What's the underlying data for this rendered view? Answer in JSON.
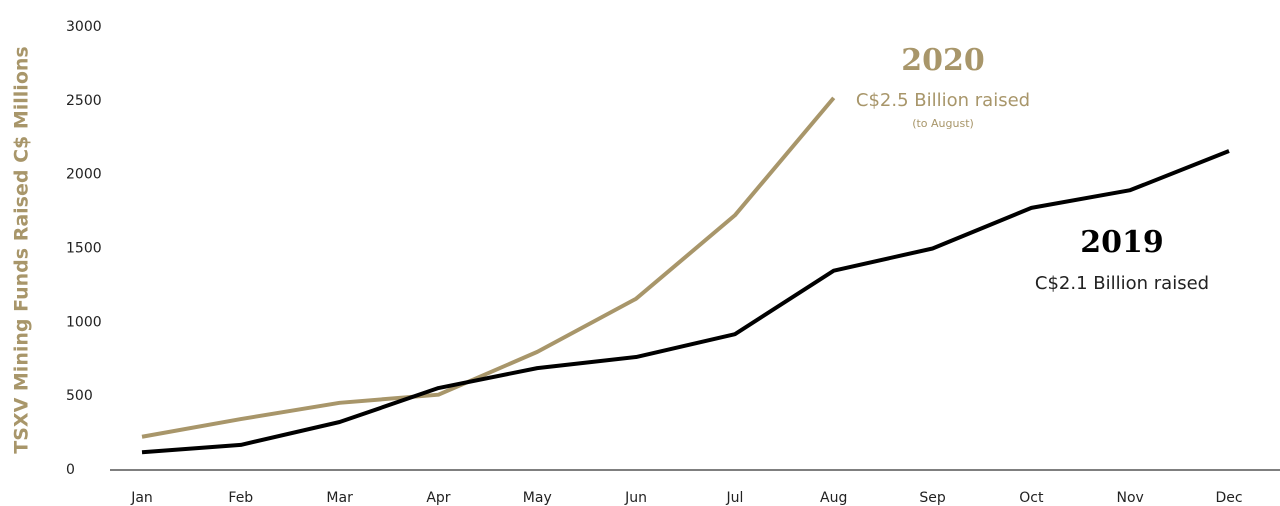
{
  "chart_data": {
    "type": "line",
    "y_label": "TSXV Mining Funds Raised C$ Millions",
    "categories": [
      "Jan",
      "Feb",
      "Mar",
      "Apr",
      "May",
      "Jun",
      "Jul",
      "Aug",
      "Sep",
      "Oct",
      "Nov",
      "Dec"
    ],
    "series": [
      {
        "name": "2020",
        "color": "#a8966a",
        "values": [
          225,
          345,
          455,
          510,
          800,
          1160,
          1725,
          2520,
          null,
          null,
          null,
          null
        ]
      },
      {
        "name": "2019",
        "color": "#000000",
        "values": [
          120,
          170,
          325,
          555,
          690,
          765,
          920,
          1350,
          1500,
          1775,
          1895,
          2160
        ]
      }
    ],
    "annotations": [
      "C$2.5 Billion raised",
      "(to August)",
      "C$2.1 Billion raised"
    ],
    "ylim": [
      0,
      3000
    ],
    "yticks": [
      0,
      500,
      1000,
      1500,
      2000,
      2500,
      3000
    ],
    "grid": false
  }
}
